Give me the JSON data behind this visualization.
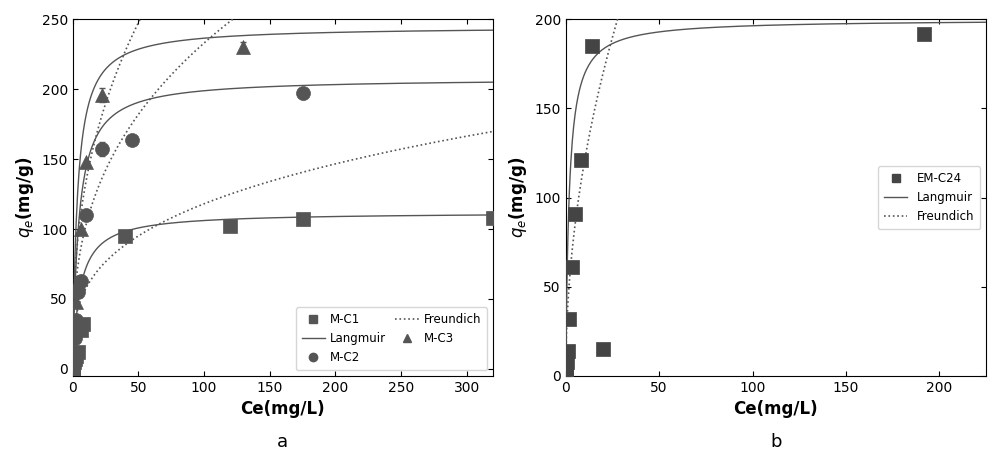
{
  "panel_a": {
    "xlabel": "Ce(mg/L)",
    "ylabel": "$q_e$(mg/g)",
    "xlim": [
      0,
      320
    ],
    "ylim": [
      -5,
      250
    ],
    "xticks": [
      0,
      50,
      100,
      150,
      200,
      250,
      300
    ],
    "yticks": [
      0,
      50,
      100,
      150,
      200,
      250
    ],
    "label": "a",
    "series": {
      "MC1": {
        "label": "M-C1",
        "marker": "s",
        "color": "#555555",
        "x": [
          0.05,
          0.1,
          0.2,
          0.4,
          0.8,
          1.5,
          2.5,
          4.0,
          6.0,
          8.0,
          40.0,
          120.0,
          175.0,
          320.0
        ],
        "y": [
          0.3,
          0.8,
          1.5,
          3.0,
          5.0,
          7.0,
          9.0,
          12.0,
          28.0,
          32.0,
          95.0,
          102.0,
          107.0,
          108.0
        ],
        "yerr": [
          0,
          0,
          0,
          0,
          0,
          0,
          0,
          0,
          0,
          0,
          0,
          3.0,
          4.0,
          0
        ]
      },
      "MC2": {
        "label": "M-C2",
        "marker": "o",
        "color": "#555555",
        "x": [
          0.05,
          0.1,
          0.2,
          0.4,
          0.8,
          1.5,
          2.5,
          4.0,
          6.0,
          10.0,
          22.0,
          45.0,
          175.0
        ],
        "y": [
          0.5,
          1.5,
          3.0,
          6.0,
          12.0,
          22.0,
          35.0,
          55.0,
          63.0,
          110.0,
          157.0,
          164.0,
          197.0
        ],
        "yerr": [
          0,
          0,
          0,
          0,
          0,
          0,
          0,
          0,
          0,
          0,
          5.0,
          0,
          4.0
        ]
      },
      "MC3": {
        "label": "M-C3",
        "marker": "^",
        "color": "#555555",
        "x": [
          0.05,
          0.1,
          0.2,
          0.4,
          0.8,
          1.5,
          2.5,
          4.0,
          6.0,
          10.0,
          22.0,
          130.0
        ],
        "y": [
          0.5,
          2.0,
          4.0,
          8.0,
          15.0,
          28.0,
          48.0,
          62.0,
          100.0,
          148.0,
          196.0,
          230.0
        ],
        "yerr": [
          0,
          0,
          0,
          0,
          0,
          0,
          0,
          0,
          0,
          0,
          5.0,
          4.0
        ]
      }
    },
    "langmuir": {
      "MC1": {
        "qmax": 112.0,
        "KL": 0.18
      },
      "MC2": {
        "qmax": 208.0,
        "KL": 0.22
      },
      "MC3": {
        "qmax": 245.0,
        "KL": 0.28
      }
    },
    "freundlich": {
      "MC1": {
        "KF": 28.0,
        "n": 3.2
      },
      "MC2": {
        "KF": 45.0,
        "n": 2.8
      },
      "MC3": {
        "KF": 55.0,
        "n": 2.6
      }
    }
  },
  "panel_b": {
    "xlabel": "Ce(mg/L)",
    "ylabel": "$q_e$(mg/g)",
    "xlim": [
      0,
      225
    ],
    "ylim": [
      0,
      200
    ],
    "xticks": [
      0,
      50,
      100,
      150,
      200
    ],
    "yticks": [
      0,
      50,
      100,
      150,
      200
    ],
    "label": "b",
    "series": {
      "EMC24": {
        "label": "EM-C24",
        "marker": "s",
        "color": "#444444",
        "x": [
          0.05,
          0.1,
          0.2,
          0.5,
          1.0,
          2.0,
          3.5,
          5.0,
          8.0,
          14.0,
          20.0,
          192.0
        ],
        "y": [
          0.5,
          1.5,
          4.0,
          8.0,
          14.0,
          32.0,
          61.0,
          91.0,
          121.0,
          185.0,
          15.0,
          192.0
        ],
        "yerr": [
          0,
          0,
          0,
          0,
          0,
          0,
          0,
          0,
          0,
          0,
          0,
          0
        ]
      }
    },
    "langmuir": {
      "EMC24": {
        "qmax": 200.0,
        "KL": 0.55
      }
    },
    "freundlich": {
      "EMC24": {
        "KF": 38.0,
        "n": 2.0
      }
    }
  },
  "line_color": "#555555",
  "marker_size": 6,
  "font_size": 11,
  "label_font_size": 12
}
